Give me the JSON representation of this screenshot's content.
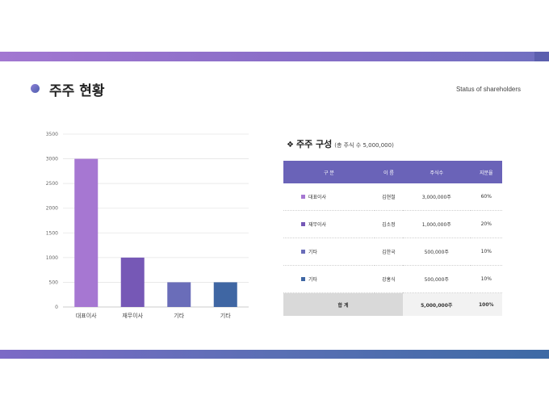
{
  "header": {
    "title": "주주 현황",
    "subtitle": "Status of shareholders"
  },
  "chart_data": {
    "type": "bar",
    "categories": [
      "대표이사",
      "재무이사",
      "기타",
      "기타"
    ],
    "values": [
      3000,
      1000,
      500,
      500
    ],
    "colors": [
      "#a677d2",
      "#7658b6",
      "#6a6db9",
      "#3f66a3"
    ],
    "ylim": [
      0,
      3500
    ],
    "yticks": [
      0,
      500,
      1000,
      1500,
      2000,
      2500,
      3000,
      3500
    ],
    "grid": true,
    "legend": false
  },
  "table": {
    "heading": "주주 구성",
    "heading_note": "(총 주식 수 5,000,000)",
    "columns": [
      "구 분",
      "이 름",
      "주식수",
      "지분율"
    ],
    "rows": [
      {
        "category": "대표이사",
        "name": "김현철",
        "shares": "3,000,000주",
        "ratio": "60%",
        "color": "#a677d2"
      },
      {
        "category": "재무이사",
        "name": "김소정",
        "shares": "1,000,000주",
        "ratio": "20%",
        "color": "#7658b6"
      },
      {
        "category": "기타",
        "name": "김한국",
        "shares": "500,000주",
        "ratio": "10%",
        "color": "#6a6db9"
      },
      {
        "category": "기타",
        "name": "강홍식",
        "shares": "500,000주",
        "ratio": "10%",
        "color": "#3f66a3"
      }
    ],
    "total": {
      "label": "합 계",
      "shares": "5,000,000주",
      "ratio": "100%"
    }
  }
}
